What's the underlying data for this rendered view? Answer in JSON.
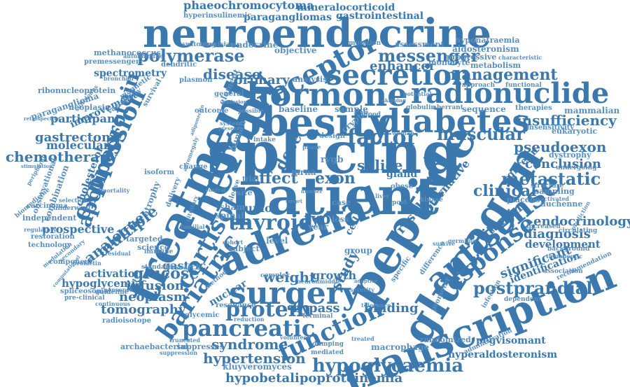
{
  "colors": {
    "primary": "#3b78ad",
    "secondary": "#5a8fbf",
    "background": "#ffffff"
  },
  "words": {
    "splicing": "splicing",
    "patient": "patient",
    "peptide": "peptide",
    "glucagon": "glucagon",
    "adrenal": "adrenal",
    "neuroendocrine": "neuroendocrine",
    "treatment": "treatment",
    "therapy": "therapy",
    "obesity": "obesity",
    "transcription": "transcription",
    "hormone": "hormone",
    "surgery": "surgery",
    "diabetes": "diabetes",
    "radionuclide": "radionuclide",
    "receptor": "receptor",
    "secretion": "secretion",
    "antisense": "antisense",
    "response": "response",
    "pancreatic": "pancreatic",
    "function": "function",
    "expression": "expression",
    "apolipoprotein": "apolipoprotein",
    "cortisol": "cortisol",
    "bariatric": "bariatric",
    "thyroid": "thyroid",
    "protein": "protein",
    "hypoglycaemia": "hypoglycaemia",
    "hypobetalipoproteinemia": "hypobetalipoproteinemia",
    "management": "management",
    "messenger": "messenger",
    "polymerase": "polymerase",
    "postprandial": "postprandial",
    "muscular": "muscular",
    "insufficiency": "insufficiency",
    "pseudoexon": "pseudoexon",
    "metastatic": "metastatic",
    "endocrinology": "endocrinology",
    "factor": "factor",
    "disease": "disease",
    "primary": "primary",
    "enhancer": "enhancer",
    "chemotherapy": "chemotherapy",
    "gastrectomy": "gastrectomy",
    "multiple": "multiple",
    "analogue": "analogue",
    "glucose": "glucose",
    "weight": "weight",
    "syndrome": "syndrome",
    "hypertension": "hypertension",
    "tomography": "tomography",
    "neoplasm": "neoplasm",
    "infusion": "infusion",
    "hypoglycemia": "hypoglycemia",
    "activation": "activation",
    "study": "study",
    "type": "type",
    "exon": "exon",
    "effect": "effect",
    "dose": "dose",
    "result": "result",
    "alternative": "alternative",
    "vitamin": "vitamin",
    "clinical": "clinical",
    "conclusion": "conclusion",
    "diagnosis": "diagnosis",
    "development": "development",
    "significant": "significant",
    "identification": "identification",
    "mammalian": "mammalian",
    "ghrelin": "ghrelin",
    "splice": "splice",
    "binding": "binding",
    "bypass": "bypass",
    "growth": "growth",
    "tumor": "tumor",
    "nuclear": "nuclear",
    "gastric": "gastric",
    "prospective": "prospective",
    "molecular": "molecular",
    "participant": "participant",
    "improvement": "improvement",
    "spectrometry": "spectrometry",
    "phaeochromocytoma": "phaeochromocytoma",
    "mineralocorticoid": "mineralocorticoid",
    "paragangliomas": "paragangliomas",
    "gastrointestinal": "gastrointestinal",
    "hyperinsulinemic": "hyperinsulinemic",
    "pegvisomant": "pegvisomant",
    "hyperaldosteronism": "hyperaldosteronism",
    "macrophage": "macrophage",
    "kluyveromyces": "kluyveromyces",
    "archaebacterial": "archaebacterial",
    "suppresses": "suppresses",
    "randomized": "randomized",
    "aldosteronism": "aldosteronism",
    "hyponatraemia": "hyponatraemia",
    "progressive": "progressive",
    "metabolism": "metabolism",
    "methanococcus": "methanococcus",
    "premessenger": "premessenger",
    "ribonucleoprotein": "ribonucleoprotein",
    "paraganglioma": "paraganglioma",
    "neoplasia": "neoplasia",
    "cholesterol": "cholesterol",
    "combination": "combination",
    "observational": "observational",
    "independent": "independent",
    "restoration": "restoration",
    "technology": "technology",
    "component": "component",
    "spliceosomal": "spliceosomal",
    "radioisotope": "radioisotope",
    "carcinoma": "carcinoma",
    "gland": "gland",
    "sequence": "sequence",
    "eukaryotic": "eukaryotic",
    "dystrophy": "dystrophy",
    "duchenne": "duchenne",
    "placebo": "placebo",
    "sampling": "sampling",
    "insensitivity": "insensitivity",
    "therapies": "therapies",
    "objective": "objective",
    "assessment": "assessment",
    "monocyte": "monocyte",
    "endocrine": "endocrine",
    "dendritic": "dendritic",
    "element": "element",
    "baseline": "baseline",
    "sample": "sample",
    "atrophy": "atrophy",
    "human": "human",
    "year": "year",
    "cell": "cell",
    "loss": "loss",
    "case": "case",
    "sham": "sham",
    "spinal": "spinal",
    "level": "level",
    "subject": "subject",
    "targeted": "targeted",
    "science": "science",
    "standard": "standard",
    "research": "research",
    "resonance": "resonance",
    "glycemic": "glycemic",
    "group": "group",
    "outcome": "outcome",
    "general": "general",
    "analysis": "analysis",
    "mutation": "mutation",
    "switching": "switching",
    "cerevisiae": "cerevisiae",
    "survival": "survival",
    "variability": "variability",
    "magnetic": "magnetic",
    "possible": "possible",
    "complex": "complex",
    "severity": "severity",
    "increased": "increased",
    "background": "background",
    "terminal": "terminal",
    "reduction": "reduction",
    "guideline": "guideline",
    "continuous": "continuous",
    "mediated": "mediated",
    "dumping": "dumping",
    "volunteer": "volunteer",
    "treated": "treated",
    "undergoing": "undergoing",
    "circulating": "circulating",
    "infection": "infection",
    "dependent": "dependent",
    "globulin": "globulin",
    "aberrant": "aberrant",
    "approach": "approach",
    "functional": "functional",
    "characteristic": "characteristic",
    "bronchial": "bronchial",
    "autoimmune": "autoimmune",
    "structure": "structure",
    "activated": "activated",
    "therapeutic": "therapeutic",
    "germline": "germline",
    "promoter": "promoter",
    "difference": "difference",
    "specific": "specific",
    "tolerance": "tolerance",
    "survive": "survive",
    "change": "change",
    "isoform": "isoform",
    "immune": "immune",
    "familial": "familial",
    "delivery": "delivery",
    "ryrb": "rygb",
    "mrna": "mrna",
    "site": "site",
    "sleeve": "sleeve",
    "trial": "trial",
    "obese": "obese",
    "post": "post",
    "kinase": "kinase",
    "design": "design",
    "intake": "intake",
    "blood": "blood",
    "cryptic": "cryptic",
    "woman": "woman",
    "liver": "liver",
    "potential": "potential",
    "recommendation": "recommendation",
    "association": "association",
    "administration": "administration",
    "plasmon": "plasmon",
    "underwent": "underwent",
    "regulatory": "regulatory",
    "selection": "selection",
    "biomedicine": "biomedicine",
    "secondary": "secondary",
    "modulation": "modulation",
    "prolactin": "prolactin",
    "mortality": "mortality",
    "residual": "residual",
    "suppression": "suppression",
    "method": "method",
    "neuron": "neuron",
    "middle": "middle",
    "adaptive": "adaptive",
    "truncated": "truncated",
    "nonsense": "nonsense",
    "prediction": "prediction",
    "pre-clinical": "pre-clinical",
    "peripheral": "peripheral",
    "bariatric_small": "emission",
    "system": "system",
    "present": "present",
    "cohort": "cohort",
    "control": "control",
    "number": "number",
    "phase": "phase",
    "target": "target",
    "skipping": "skipping",
    "retrospective": "retrospective",
    "stimulation": "stimulation",
    "mediated2": "adiponectin",
    "sulfolobus": "sulfolobus",
    "computational": "computational",
    "pituitary": "pituitary",
    "acromegaly": "acromegaly"
  }
}
